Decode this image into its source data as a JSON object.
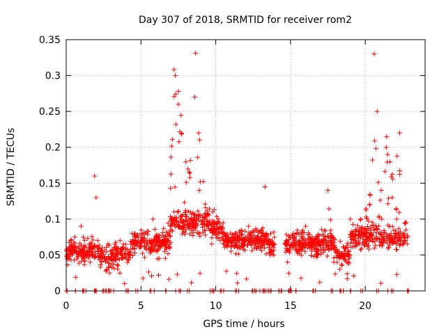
{
  "chart_data": {
    "type": "scatter",
    "title": "Day 307 of 2018, SRMTID for receiver rom2",
    "xlabel": "GPS time / hours",
    "ylabel": "SRMTID / TECUs",
    "xlim": [
      0,
      24
    ],
    "ylim": [
      0,
      0.35
    ],
    "grid": true,
    "marker": "+",
    "series_color": "#ff0000",
    "x_tick_labels": [
      "0",
      "5",
      "10",
      "15",
      "20"
    ],
    "y_tick_labels": [
      "0",
      "0.05",
      "0.1",
      "0.15",
      "0.2",
      "0.25",
      "0.3",
      "0.35"
    ],
    "series": [
      {
        "name": "SRMTID",
        "description": "Dense cloud of roughly 2000 samples (about one per 40 s of visible satellite arcs); representative sampled values are listed, the remainder follow the same envelope. Gaps: 14.0-14.6 h, 22.8-24 h.",
        "x": [
          0.05,
          0.2,
          0.3,
          0.5,
          0.7,
          1.0,
          1.3,
          1.6,
          1.8,
          1.9,
          2.0,
          2.4,
          2.9,
          3.3,
          3.6,
          3.9,
          4.2,
          4.6,
          5.0,
          5.4,
          5.8,
          6.3,
          6.6,
          7.0,
          7.3,
          7.5,
          7.8,
          8.0,
          8.3,
          8.6,
          8.9,
          9.3,
          9.8,
          10.3,
          10.8,
          11.3,
          11.8,
          12.2,
          12.7,
          13.1,
          13.3,
          14.8,
          15.2,
          15.6,
          16.0,
          16.4,
          16.8,
          17.2,
          17.5,
          17.9,
          18.3,
          18.7,
          19.0,
          19.3,
          19.7,
          20.0,
          20.3,
          20.6,
          20.8,
          21.1,
          21.4,
          21.6,
          21.8,
          22.1,
          22.3,
          22.6
        ],
        "y": [
          0.05,
          0.045,
          0.07,
          0.06,
          0.055,
          0.09,
          0.05,
          0.04,
          0.05,
          0.16,
          0.13,
          0.06,
          0.025,
          0.05,
          0.07,
          0.01,
          0.055,
          0.08,
          0.08,
          0.07,
          0.1,
          0.06,
          0.07,
          0.09,
          0.3,
          0.26,
          0.09,
          0.18,
          0.1,
          0.27,
          0.14,
          0.1,
          0.11,
          0.07,
          0.065,
          0.08,
          0.07,
          0.09,
          0.06,
          0.08,
          0.145,
          0.04,
          0.08,
          0.07,
          0.09,
          0.06,
          0.05,
          0.06,
          0.14,
          0.04,
          0.03,
          0.06,
          0.1,
          0.07,
          0.1,
          0.08,
          0.12,
          0.33,
          0.25,
          0.1,
          0.2,
          0.07,
          0.13,
          0.1,
          0.22,
          0.08
        ]
      }
    ]
  }
}
